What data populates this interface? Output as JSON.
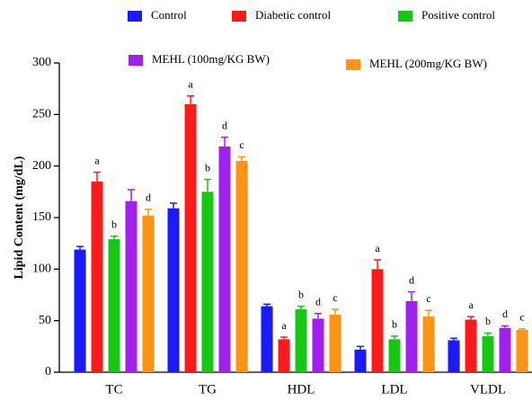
{
  "chart_data": {
    "type": "bar",
    "y_label": "Lipid Content (mg/dL)",
    "categories": [
      "TC",
      "TG",
      "HDL",
      "LDL",
      "VLDL"
    ],
    "series": [
      {
        "name": "Control",
        "color": "#1a1aff",
        "values": [
          119,
          159,
          64,
          22,
          31
        ],
        "errors": [
          3,
          5,
          2,
          3,
          2
        ],
        "letters": [
          null,
          null,
          null,
          null,
          null
        ]
      },
      {
        "name": "Diabetic control",
        "color": "#ff1a1a",
        "values": [
          185,
          260,
          32,
          100,
          51
        ],
        "errors": [
          9,
          8,
          2,
          9,
          3
        ],
        "letters": [
          "a",
          "a",
          "a",
          "a",
          "a"
        ]
      },
      {
        "name": "Positive control",
        "color": "#14c814",
        "values": [
          129,
          175,
          61,
          32,
          35
        ],
        "errors": [
          3,
          12,
          3,
          3,
          3
        ],
        "letters": [
          "b",
          "b",
          "b",
          "b",
          "b"
        ]
      },
      {
        "name": "MEHL (100mg/KG BW)",
        "color": "#a020f0",
        "values": [
          166,
          219,
          52,
          69,
          43
        ],
        "errors": [
          11,
          9,
          5,
          9,
          2
        ],
        "letters": [
          null,
          "d",
          "d",
          "d",
          "d"
        ]
      },
      {
        "name": "MEHL (200mg/KG BW)",
        "color": "#ff9412",
        "values": [
          152,
          205,
          56,
          54,
          41
        ],
        "errors": [
          6,
          4,
          5,
          6,
          1
        ],
        "letters": [
          "d",
          "c",
          "c",
          "c",
          "c"
        ]
      }
    ],
    "ylim": [
      0,
      300
    ],
    "yticks": [
      0,
      50,
      100,
      150,
      200,
      250,
      300
    ]
  }
}
